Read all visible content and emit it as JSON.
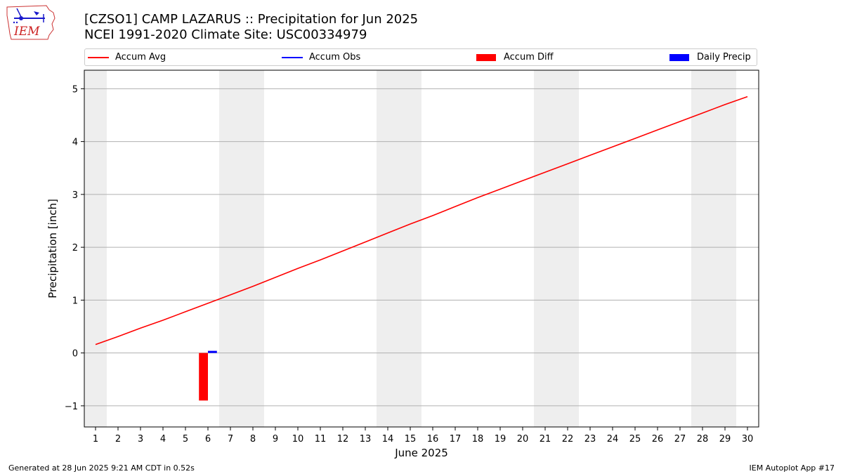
{
  "header": {
    "title_line1": "[CZSO1] CAMP LAZARUS :: Precipitation for Jun 2025",
    "title_line2": "NCEI 1991-2020 Climate Site: USC00334979"
  },
  "logo": {
    "text": "IEM",
    "icon": "iem-iowa-logo-icon"
  },
  "legend": {
    "placement": "top, above plot area",
    "items": [
      {
        "label": "Accum Avg",
        "color": "#ff0000",
        "kind": "line"
      },
      {
        "label": "Accum Obs",
        "color": "#0000ff",
        "kind": "line"
      },
      {
        "label": "Accum Diff",
        "color": "#ff0000",
        "kind": "bar"
      },
      {
        "label": "Daily Precip",
        "color": "#0000ff",
        "kind": "bar"
      }
    ]
  },
  "footer": {
    "left": "Generated at 28 Jun 2025 9:21 AM CDT in 0.52s",
    "right": "IEM Autoplot App #17"
  },
  "chart_data": {
    "type": "line",
    "title": "[CZSO1] CAMP LAZARUS :: Precipitation for Jun 2025",
    "subtitle": "NCEI 1991-2020 Climate Site: USC00334979",
    "xlabel": "June 2025",
    "ylabel": "Precipitation [inch]",
    "xlim": [
      0.5,
      30.5
    ],
    "ylim": [
      -1.4,
      5.35
    ],
    "x_ticks": [
      1,
      2,
      3,
      4,
      5,
      6,
      7,
      8,
      9,
      10,
      11,
      12,
      13,
      14,
      15,
      16,
      17,
      18,
      19,
      20,
      21,
      22,
      23,
      24,
      25,
      26,
      27,
      28,
      29,
      30
    ],
    "y_ticks": [
      -1,
      0,
      1,
      2,
      3,
      4,
      5
    ],
    "y_tick_labels": [
      "−1",
      "0",
      "1",
      "2",
      "3",
      "4",
      "5"
    ],
    "grid": "horizontal",
    "weekend_shading": [
      [
        0.5,
        1.5
      ],
      [
        6.5,
        8.5
      ],
      [
        13.5,
        15.5
      ],
      [
        20.5,
        22.5
      ],
      [
        27.5,
        29.5
      ]
    ],
    "shading_color": "#eeeeee",
    "series": [
      {
        "name": "Accum Avg",
        "kind": "line",
        "color": "#ff0000",
        "x": [
          1,
          2,
          3,
          4,
          5,
          6,
          7,
          8,
          9,
          10,
          11,
          12,
          13,
          14,
          15,
          16,
          17,
          18,
          19,
          20,
          21,
          22,
          23,
          24,
          25,
          26,
          27,
          28,
          29,
          30
        ],
        "values": [
          0.16,
          0.31,
          0.47,
          0.62,
          0.78,
          0.94,
          1.1,
          1.26,
          1.43,
          1.6,
          1.76,
          1.93,
          2.1,
          2.27,
          2.44,
          2.6,
          2.77,
          2.94,
          3.1,
          3.26,
          3.42,
          3.58,
          3.74,
          3.9,
          4.06,
          4.22,
          4.38,
          4.54,
          4.7,
          4.85
        ]
      },
      {
        "name": "Accum Obs",
        "kind": "line",
        "color": "#0000ff",
        "x": [],
        "values": []
      },
      {
        "name": "Accum Diff",
        "kind": "bar",
        "color": "#ff0000",
        "x": [
          6
        ],
        "values": [
          -0.9
        ],
        "offset": -0.2,
        "width": 0.4
      },
      {
        "name": "Daily Precip",
        "kind": "bar",
        "color": "#0000ff",
        "x": [
          6
        ],
        "values": [
          0.04
        ],
        "offset": 0.2,
        "width": 0.4
      }
    ]
  }
}
